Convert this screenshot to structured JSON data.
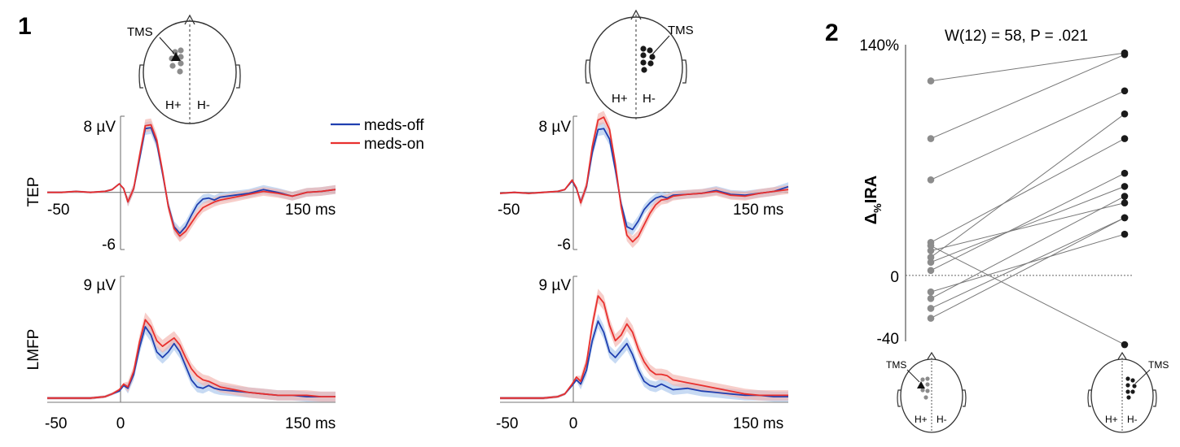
{
  "panels": {
    "p1": "1",
    "p2": "2"
  },
  "colors": {
    "meds_off": "#1f3fb0",
    "meds_on": "#e8302e",
    "meds_off_band": "#a9c6ec",
    "meds_on_band": "#f3b3ae",
    "h_plus_dot": "#8c8c8c",
    "h_minus_dot": "#1a1a1a"
  },
  "head": {
    "tms_label": "TMS",
    "h_plus": "H+",
    "h_minus": "H-"
  },
  "legend": {
    "meds_off": "meds-off",
    "meds_on": "meds-on"
  },
  "tep": {
    "ylabel": "TEP",
    "ymax_label": "8 µV",
    "ymin_label": "-6",
    "xmin_label": "-50",
    "xmax_label": "150 ms"
  },
  "lmfp": {
    "ylabel": "LMFP",
    "ymax_label": "9 µV",
    "xmin_label": "-50",
    "xzero_label": "0",
    "xmax_label": "150 ms"
  },
  "panel2": {
    "stat": "W(12) = 58, P = .021",
    "ylabel_pre": "Δ",
    "ylabel_sub": "%",
    "ylabel_post": "IRA",
    "ytick_top": "140%",
    "ytick_zero": "0",
    "ytick_bottom": "-40"
  },
  "chart_data": [
    {
      "type": "line",
      "panel": "1",
      "hemisphere": "H+",
      "measure": "TEP",
      "ylim": [
        -6,
        8
      ],
      "xlim": [
        -50,
        150
      ],
      "x": [
        -50,
        -40,
        -30,
        -20,
        -10,
        -5,
        0,
        3,
        6,
        10,
        14,
        18,
        22,
        26,
        30,
        34,
        38,
        42,
        46,
        50,
        54,
        58,
        62,
        66,
        70,
        80,
        90,
        100,
        110,
        120,
        130,
        140,
        150
      ],
      "series": [
        {
          "name": "meds-off",
          "values": [
            0,
            0,
            0.1,
            0,
            0.1,
            0.3,
            0.9,
            0.4,
            -1.0,
            0.4,
            3.5,
            6.7,
            6.8,
            5.2,
            2.0,
            -1.4,
            -3.6,
            -4.3,
            -3.6,
            -2.4,
            -1.3,
            -0.7,
            -0.6,
            -0.8,
            -0.5,
            -0.3,
            -0.1,
            0.3,
            0,
            -0.4,
            0,
            0.1,
            0.3
          ]
        },
        {
          "name": "meds-on",
          "values": [
            0,
            0,
            0.1,
            0,
            0.1,
            0.3,
            0.9,
            0.4,
            -1.0,
            0.4,
            3.8,
            7.0,
            7.1,
            5.5,
            2.2,
            -1.5,
            -3.8,
            -4.6,
            -4.1,
            -3.2,
            -2.3,
            -1.6,
            -1.3,
            -1.0,
            -0.8,
            -0.5,
            -0.2,
            0.1,
            -0.1,
            -0.4,
            0,
            0.1,
            0.3
          ]
        }
      ]
    },
    {
      "type": "line",
      "panel": "1",
      "hemisphere": "H-",
      "measure": "TEP",
      "ylim": [
        -6,
        8
      ],
      "xlim": [
        -50,
        150
      ],
      "x": [
        -50,
        -40,
        -30,
        -20,
        -10,
        -5,
        0,
        3,
        6,
        10,
        14,
        18,
        22,
        26,
        30,
        34,
        38,
        42,
        46,
        50,
        54,
        58,
        62,
        66,
        70,
        80,
        90,
        100,
        110,
        120,
        130,
        140,
        150
      ],
      "series": [
        {
          "name": "meds-off",
          "values": [
            -0.1,
            0,
            -0.1,
            0,
            0.1,
            0.3,
            1.2,
            0.4,
            -1.0,
            0.6,
            4.2,
            6.6,
            6.7,
            5.6,
            2.4,
            -1.2,
            -3.6,
            -3.9,
            -3.0,
            -1.8,
            -1.1,
            -0.6,
            -0.4,
            -0.6,
            -0.3,
            -0.2,
            -0.1,
            0.2,
            -0.2,
            -0.3,
            -0.1,
            0.1,
            0.6
          ]
        },
        {
          "name": "meds-on",
          "values": [
            -0.1,
            0,
            -0.1,
            0,
            0.1,
            0.3,
            1.3,
            0.5,
            -1.1,
            0.7,
            4.8,
            7.6,
            7.9,
            6.6,
            3.0,
            -1.5,
            -4.5,
            -5.2,
            -4.6,
            -3.4,
            -2.2,
            -1.3,
            -0.8,
            -0.7,
            -0.4,
            -0.2,
            -0.1,
            0.1,
            -0.3,
            -0.4,
            -0.1,
            0.1,
            0.3
          ]
        }
      ]
    },
    {
      "type": "line",
      "panel": "1",
      "hemisphere": "H+",
      "measure": "LMFP",
      "ylim": [
        0,
        9
      ],
      "xlim": [
        -50,
        150
      ],
      "x": [
        -50,
        -40,
        -30,
        -20,
        -10,
        -5,
        0,
        3,
        6,
        10,
        14,
        18,
        22,
        26,
        30,
        34,
        38,
        42,
        46,
        50,
        54,
        58,
        62,
        66,
        70,
        80,
        90,
        100,
        110,
        120,
        130,
        140,
        150
      ],
      "series": [
        {
          "name": "meds-off",
          "values": [
            0.3,
            0.3,
            0.3,
            0.3,
            0.4,
            0.6,
            0.8,
            1.2,
            1.0,
            2.0,
            3.9,
            5.4,
            4.8,
            3.6,
            3.2,
            3.6,
            4.2,
            3.6,
            2.6,
            1.6,
            1.1,
            1.0,
            1.2,
            1.0,
            0.9,
            0.8,
            0.7,
            0.6,
            0.5,
            0.5,
            0.4,
            0.4,
            0.4
          ]
        },
        {
          "name": "meds-on",
          "values": [
            0.3,
            0.3,
            0.3,
            0.3,
            0.4,
            0.6,
            0.9,
            1.3,
            1.1,
            2.2,
            4.3,
            5.9,
            5.4,
            4.4,
            4.0,
            4.3,
            4.6,
            4.1,
            3.2,
            2.4,
            1.9,
            1.6,
            1.5,
            1.3,
            1.1,
            0.9,
            0.7,
            0.6,
            0.5,
            0.5,
            0.5,
            0.4,
            0.4
          ]
        }
      ]
    },
    {
      "type": "line",
      "panel": "1",
      "hemisphere": "H-",
      "measure": "LMFP",
      "ylim": [
        0,
        9
      ],
      "xlim": [
        -50,
        150
      ],
      "x": [
        -50,
        -40,
        -30,
        -20,
        -10,
        -5,
        0,
        3,
        6,
        10,
        14,
        18,
        22,
        26,
        30,
        34,
        38,
        42,
        46,
        50,
        54,
        58,
        62,
        66,
        70,
        80,
        90,
        100,
        110,
        120,
        130,
        140,
        150
      ],
      "series": [
        {
          "name": "meds-off",
          "values": [
            0.3,
            0.3,
            0.3,
            0.3,
            0.4,
            0.6,
            1.2,
            1.6,
            1.3,
            2.3,
            4.4,
            5.8,
            5.0,
            3.6,
            3.2,
            3.7,
            4.2,
            3.4,
            2.3,
            1.5,
            1.2,
            1.1,
            1.3,
            1.1,
            0.9,
            1.0,
            0.8,
            0.7,
            0.6,
            0.5,
            0.5,
            0.4,
            0.4
          ]
        },
        {
          "name": "meds-on",
          "values": [
            0.3,
            0.3,
            0.3,
            0.3,
            0.4,
            0.6,
            1.3,
            1.8,
            1.5,
            2.8,
            5.5,
            7.6,
            7.1,
            5.5,
            4.4,
            4.8,
            5.6,
            5.0,
            3.8,
            2.9,
            2.3,
            2.0,
            2.0,
            1.9,
            1.6,
            1.4,
            1.2,
            1.0,
            0.8,
            0.6,
            0.5,
            0.5,
            0.5
          ]
        }
      ]
    },
    {
      "type": "scatter",
      "panel": "2",
      "ylabel": "Δ%IRA",
      "ylim": [
        -40,
        140
      ],
      "categories": [
        "H+",
        "H-"
      ],
      "pairs": [
        [
          118,
          135
        ],
        [
          83,
          134
        ],
        [
          58,
          112
        ],
        [
          11,
          98
        ],
        [
          20,
          83
        ],
        [
          3,
          62
        ],
        [
          8,
          54
        ],
        [
          15,
          44
        ],
        [
          -14,
          48
        ],
        [
          -20,
          35
        ],
        [
          -26,
          35
        ],
        [
          -10,
          25
        ],
        [
          18,
          -42
        ]
      ]
    }
  ]
}
